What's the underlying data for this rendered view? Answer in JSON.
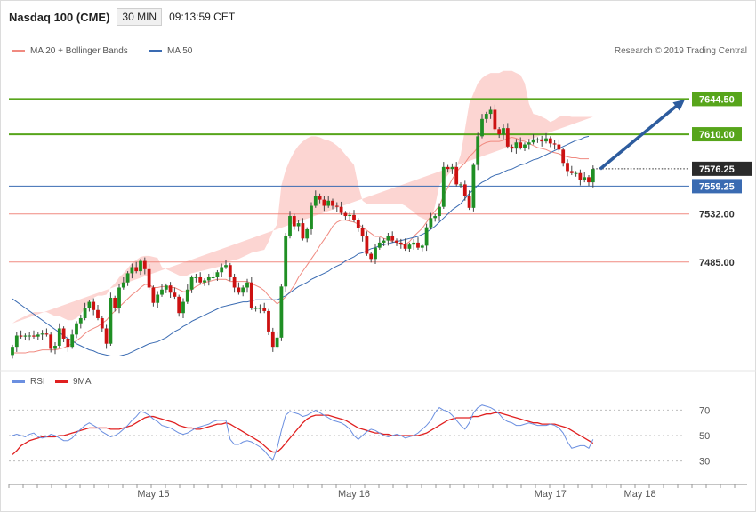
{
  "header": {
    "title": "Nasdaq 100 (CME)",
    "timeframe": "30 MIN",
    "time": "09:13:59 CET"
  },
  "legend": {
    "bb_label": "MA 20 + Bollinger Bands",
    "ma50_label": "MA 50",
    "rsi_label": "RSI",
    "ma9_label": "9MA",
    "copyright": "Research © 2019 Trading Central"
  },
  "colors": {
    "up_candle": "#1f8f24",
    "down_candle": "#cc1111",
    "band_fill": "#fcd5d2",
    "ma20": "#f08a80",
    "ma50": "#3a6bb2",
    "resistance": "#57a51b",
    "support": "#f08a80",
    "pivot": "#3a6bb2",
    "arrow": "#2d5c9e",
    "rsi": "#6b8fe0",
    "rsi_ma": "#e02020"
  },
  "chart_data": [
    {
      "type": "candlestick",
      "title": "Nasdaq 100 (CME)",
      "ylim": [
        7383,
        7684
      ],
      "xlabel": "",
      "ylabel": "",
      "x_ticks": [
        {
          "label": "May 15",
          "index": 33
        },
        {
          "label": "May 16",
          "index": 80
        },
        {
          "label": "May 17",
          "index": 126
        },
        {
          "label": "May 18",
          "index": 147
        }
      ],
      "levels": [
        {
          "value": 7644.5,
          "label": "7644.50",
          "kind": "resistance"
        },
        {
          "value": 7610.0,
          "label": "7610.00",
          "kind": "resistance"
        },
        {
          "value": 7559.25,
          "label": "7559.25",
          "kind": "pivot"
        },
        {
          "value": 7532.0,
          "label": "7532.00",
          "kind": "support"
        },
        {
          "value": 7485.0,
          "label": "7485.00",
          "kind": "support"
        }
      ],
      "last_price": {
        "value": 7576.25,
        "label": "7576.25"
      },
      "target_arrow": {
        "from_value": 7576,
        "to_value": 7644
      },
      "close": [
        7402,
        7413,
        7412,
        7413,
        7413,
        7412,
        7414,
        7415,
        7414,
        7400,
        7403,
        7420,
        7410,
        7402,
        7414,
        7425,
        7430,
        7440,
        7446,
        7438,
        7430,
        7420,
        7405,
        7450,
        7440,
        7460,
        7465,
        7474,
        7480,
        7476,
        7486,
        7478,
        7460,
        7445,
        7453,
        7458,
        7462,
        7455,
        7451,
        7435,
        7446,
        7458,
        7470,
        7470,
        7465,
        7467,
        7470,
        7470,
        7475,
        7480,
        7482,
        7470,
        7460,
        7455,
        7460,
        7465,
        7440,
        7440,
        7440,
        7437,
        7417,
        7402,
        7411,
        7461,
        7510,
        7530,
        7520,
        7523,
        7508,
        7517,
        7540,
        7550,
        7546,
        7540,
        7545,
        7540,
        7539,
        7533,
        7530,
        7531,
        7526,
        7518,
        7510,
        7493,
        7488,
        7499,
        7504,
        7506,
        7510,
        7506,
        7504,
        7503,
        7498,
        7502,
        7504,
        7499,
        7501,
        7519,
        7528,
        7530,
        7539,
        7578,
        7576,
        7578,
        7561,
        7561,
        7550,
        7538,
        7580,
        7608,
        7625,
        7630,
        7634,
        7615,
        7610,
        7616,
        7598,
        7596,
        7602,
        7597,
        7600,
        7602,
        7605,
        7605,
        7603,
        7606,
        7601,
        7600,
        7595,
        7582,
        7574,
        7572,
        7572,
        7565,
        7568,
        7563,
        7576
      ],
      "bollinger_upper": [
        7425,
        7428,
        7430,
        7432,
        7434,
        7436,
        7436,
        7436,
        7436,
        7434,
        7432,
        7432,
        7430,
        7428,
        7428,
        7430,
        7434,
        7440,
        7446,
        7450,
        7452,
        7452,
        7453,
        7460,
        7464,
        7470,
        7474,
        7479,
        7484,
        7487,
        7490,
        7491,
        7491,
        7490,
        7489,
        7480,
        7478,
        7476,
        7474,
        7472,
        7471,
        7472,
        7474,
        7475,
        7476,
        7477,
        7478,
        7479,
        7480,
        7481,
        7484,
        7486,
        7487,
        7488,
        7490,
        7492,
        7494,
        7495,
        7496,
        7497,
        7505,
        7515,
        7522,
        7560,
        7575,
        7585,
        7593,
        7599,
        7603,
        7606,
        7608,
        7608,
        7607,
        7605,
        7604,
        7602,
        7599,
        7595,
        7590,
        7585,
        7580,
        7560,
        7545,
        7542,
        7542,
        7542,
        7542,
        7542,
        7542,
        7542,
        7542,
        7542,
        7540,
        7537,
        7534,
        7530,
        7528,
        7526,
        7525,
        7540,
        7560,
        7565,
        7570,
        7575,
        7578,
        7590,
        7615,
        7640,
        7650,
        7660,
        7665,
        7668,
        7670,
        7670,
        7670,
        7672,
        7672,
        7672,
        7670,
        7668,
        7660,
        7640,
        7630,
        7629,
        7627,
        7625,
        7622,
        7624,
        7627,
        7628,
        7628,
        7627,
        7627,
        7627,
        7627,
        7627,
        7627
      ],
      "ma20": [
        7396,
        7396,
        7396,
        7396,
        7397,
        7397,
        7398,
        7399,
        7399,
        7399,
        7399,
        7400,
        7401,
        7403,
        7405,
        7408,
        7411,
        7415,
        7418,
        7420,
        7422,
        7425,
        7428,
        7433,
        7437,
        7441,
        7445,
        7449,
        7453,
        7456,
        7460,
        7463,
        7463,
        7460,
        7460,
        7461,
        7461,
        7460,
        7460,
        7458,
        7456,
        7456,
        7458,
        7461,
        7463,
        7465,
        7466,
        7467,
        7468,
        7468,
        7468,
        7466,
        7466,
        7466,
        7466,
        7466,
        7464,
        7462,
        7460,
        7457,
        7452,
        7448,
        7444,
        7447,
        7451,
        7456,
        7462,
        7470,
        7476,
        7482,
        7488,
        7494,
        7501,
        7507,
        7513,
        7520,
        7524,
        7526,
        7526,
        7525,
        7524,
        7522,
        7519,
        7516,
        7513,
        7510,
        7510,
        7508,
        7507,
        7505,
        7504,
        7502,
        7502,
        7505,
        7510,
        7514,
        7518,
        7524,
        7530,
        7535,
        7540,
        7550,
        7558,
        7566,
        7573,
        7578,
        7582,
        7588,
        7592,
        7597,
        7600,
        7602,
        7603,
        7603,
        7603,
        7604,
        7606,
        7607,
        7606,
        7604,
        7603,
        7601,
        7599,
        7597,
        7596,
        7595,
        7593,
        7592,
        7591,
        7589,
        7588,
        7587,
        7587,
        7586,
        7586,
        7586
      ],
      "bollinger_lower": [
        7367,
        7366,
        7366,
        7366,
        7367,
        7368,
        7369,
        7369,
        7369,
        7369,
        7369,
        7371,
        7373,
        7375,
        7378,
        7384,
        7390,
        7400,
        7405,
        7408,
        7410,
        7412,
        7410,
        7406,
        7408,
        7410,
        7412,
        7415,
        7420,
        7425,
        7432,
        7436,
        7436,
        7433,
        7435,
        7436,
        7436,
        7436,
        7440,
        7443,
        7445,
        7452,
        7456,
        7458,
        7458,
        7456,
        7455,
        7455,
        7455,
        7456,
        7456,
        7456,
        7456,
        7453,
        7452,
        7451,
        7450,
        7440,
        7430,
        7420,
        7411,
        7406,
        7403,
        7395,
        7393,
        7390,
        7391,
        7392,
        7399,
        7408,
        7417,
        7427,
        7440,
        7460,
        7476,
        7488,
        7495,
        7500,
        7505,
        7508,
        7510,
        7510,
        7505,
        7495,
        7484,
        7477,
        7478,
        7479,
        7479,
        7477,
        7475,
        7470,
        7465,
        7467,
        7468,
        7470,
        7478,
        7488,
        7494,
        7510,
        7520,
        7530,
        7535,
        7545,
        7555,
        7564,
        7569,
        7570,
        7570,
        7568,
        7566,
        7545,
        7540,
        7535,
        7530,
        7528,
        7527,
        7527,
        7530,
        7532,
        7540,
        7565,
        7565,
        7568,
        7570,
        7572,
        7570,
        7568,
        7565,
        7560,
        7555,
        7548,
        7546,
        7545,
        7545,
        7545
      ],
      "ma50": [
        7449,
        7446,
        7443,
        7440,
        7437,
        7434,
        7431,
        7428,
        7425,
        7422,
        7419,
        7416,
        7413,
        7410,
        7408,
        7405,
        7403,
        7401,
        7399,
        7398,
        7396,
        7395,
        7394,
        7393,
        7393,
        7393,
        7394,
        7395,
        7397,
        7399,
        7401,
        7403,
        7405,
        7406,
        7407,
        7409,
        7411,
        7414,
        7417,
        7419,
        7422,
        7424,
        7427,
        7429,
        7431,
        7433,
        7435,
        7437,
        7439,
        7441,
        7442,
        7443,
        7444,
        7445,
        7446,
        7446,
        7447,
        7448,
        7448,
        7448,
        7448,
        7448,
        7448,
        7450,
        7452,
        7455,
        7458,
        7461,
        7463,
        7465,
        7468,
        7470,
        7472,
        7474,
        7476,
        7479,
        7481,
        7483,
        7486,
        7488,
        7490,
        7493,
        7494,
        7496,
        7498,
        7499,
        7501,
        7502,
        7503,
        7504,
        7505,
        7506,
        7507,
        7508,
        7509,
        7510,
        7512,
        7514,
        7517,
        7520,
        7524,
        7528,
        7532,
        7536,
        7539,
        7542,
        7547,
        7552,
        7556,
        7560,
        7563,
        7565,
        7568,
        7570,
        7571,
        7573,
        7575,
        7576,
        7578,
        7580,
        7581,
        7583,
        7585,
        7586,
        7588,
        7590,
        7592,
        7594,
        7596,
        7598,
        7600,
        7602,
        7604,
        7605,
        7607,
        7608
      ]
    },
    {
      "type": "line",
      "title": "RSI",
      "ylim": [
        15,
        85
      ],
      "y_ticks": [
        30,
        50,
        70
      ],
      "series": [
        {
          "name": "RSI",
          "values": [
            50,
            51,
            50,
            49,
            51,
            52,
            49,
            48,
            49,
            51,
            50,
            48,
            46,
            46,
            48,
            52,
            55,
            58,
            60,
            58,
            56,
            53,
            51,
            49,
            50,
            52,
            55,
            58,
            62,
            65,
            69,
            68,
            66,
            63,
            61,
            58,
            57,
            56,
            54,
            52,
            51,
            52,
            54,
            56,
            57,
            58,
            59,
            61,
            62,
            62,
            62,
            47,
            43,
            43,
            45,
            46,
            45,
            43,
            41,
            38,
            34,
            31,
            40,
            54,
            66,
            69,
            68,
            67,
            65,
            66,
            68,
            70,
            68,
            66,
            64,
            62,
            61,
            60,
            58,
            55,
            50,
            47,
            50,
            53,
            55,
            54,
            52,
            50,
            49,
            50,
            51,
            50,
            48,
            49,
            50,
            52,
            55,
            58,
            62,
            68,
            72,
            70,
            69,
            66,
            62,
            58,
            55,
            60,
            68,
            72,
            74,
            73,
            72,
            70,
            67,
            63,
            61,
            60,
            58,
            58,
            59,
            60,
            59,
            58,
            58,
            58,
            59,
            58,
            56,
            52,
            45,
            40,
            41,
            42,
            42,
            40,
            47
          ]
        },
        {
          "name": "9MA",
          "values": [
            35,
            38,
            42,
            44,
            46,
            47,
            48,
            49,
            49,
            49,
            49,
            50,
            50,
            51,
            52,
            53,
            54,
            55,
            56,
            56,
            56,
            56,
            56,
            55,
            55,
            55,
            56,
            57,
            58,
            60,
            62,
            64,
            65,
            65,
            64,
            63,
            62,
            61,
            60,
            58,
            57,
            56,
            56,
            55,
            55,
            56,
            57,
            58,
            59,
            59,
            60,
            59,
            57,
            55,
            53,
            51,
            49,
            47,
            45,
            42,
            39,
            37,
            37,
            40,
            44,
            48,
            52,
            56,
            60,
            63,
            65,
            66,
            66,
            66,
            66,
            65,
            64,
            63,
            62,
            60,
            58,
            56,
            55,
            54,
            53,
            52,
            52,
            51,
            51,
            50,
            50,
            50,
            50,
            50,
            50,
            50,
            51,
            52,
            54,
            56,
            58,
            60,
            62,
            63,
            64,
            64,
            64,
            64,
            65,
            65,
            66,
            67,
            67,
            68,
            68,
            67,
            66,
            65,
            64,
            63,
            62,
            61,
            60,
            60,
            59,
            59,
            59,
            59,
            58,
            57,
            56,
            54,
            52,
            50,
            48,
            46,
            44
          ]
        }
      ]
    }
  ]
}
